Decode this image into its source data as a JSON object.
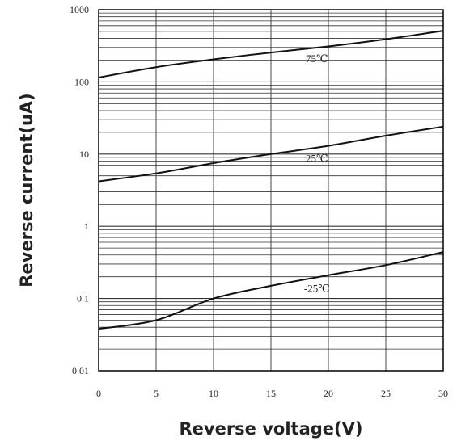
{
  "chart_data": {
    "type": "line",
    "xlabel": "Reverse voltage(V)",
    "ylabel": "Reverse current(uA)",
    "xlim": [
      0,
      30
    ],
    "ylim": [
      0.01,
      1000
    ],
    "y_scale": "log",
    "grid": true,
    "x_ticks": [
      "0",
      "5",
      "10",
      "15",
      "20",
      "25",
      "30"
    ],
    "y_ticks": [
      "1000",
      "100",
      "10",
      "1",
      "0.1",
      "0.01"
    ],
    "series": [
      {
        "name": "75℃",
        "x": [
          0,
          5,
          10,
          15,
          20,
          25,
          30
        ],
        "y": [
          115,
          160,
          205,
          255,
          310,
          390,
          510
        ]
      },
      {
        "name": "25℃",
        "x": [
          0,
          5,
          10,
          15,
          20,
          25,
          30
        ],
        "y": [
          4.2,
          5.4,
          7.5,
          10,
          13,
          18,
          24
        ]
      },
      {
        "name": "-25℃",
        "x": [
          0,
          5,
          10,
          15,
          20,
          25,
          30
        ],
        "y": [
          0.038,
          0.05,
          0.1,
          0.15,
          0.21,
          0.29,
          0.44
        ]
      }
    ]
  }
}
